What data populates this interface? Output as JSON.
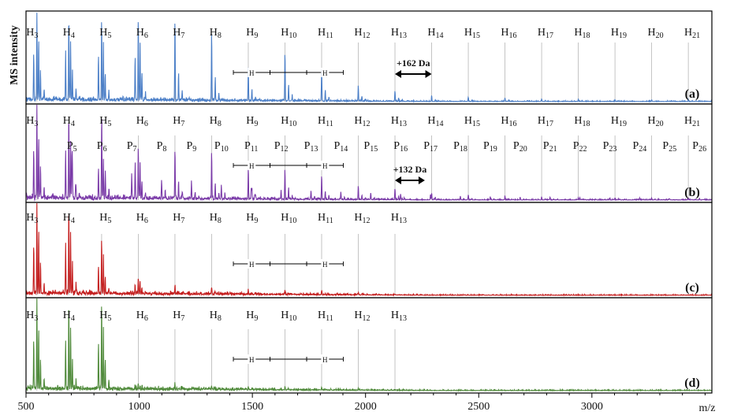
{
  "figure": {
    "y_axis_label": "MS intensity",
    "x_axis_label": "m/z",
    "xlim": [
      500,
      3530
    ],
    "x_ticks": [
      500,
      1000,
      1500,
      2000,
      2500,
      3000
    ]
  },
  "chart_data": [
    {
      "type": "line",
      "panel_label": "(a)",
      "color": "#4a7ec7",
      "series": [
        {
          "name": "H",
          "annotation_indices": [
            3,
            4,
            5,
            6,
            7,
            8,
            9,
            10,
            11,
            12,
            13,
            14,
            15,
            16,
            17,
            18,
            19,
            20,
            21
          ],
          "label_mz": [
            527,
            689,
            851,
            1013,
            1175,
            1337,
            1499,
            1661,
            1823,
            1985,
            2147,
            2309,
            2471,
            2633,
            2795,
            2957,
            3119,
            3281,
            3443
          ],
          "peak_mz": [
            548,
            689,
            834,
            996,
            1158,
            1320,
            1482,
            1644,
            1806,
            1968,
            2130,
            2292,
            2454,
            2616,
            2778,
            2940,
            3102,
            3264,
            3426
          ],
          "peak_intensity": [
            0.97,
            0.95,
            0.92,
            0.92,
            0.92,
            0.78,
            0.38,
            0.55,
            0.36,
            0.17,
            0.12,
            0.06,
            0.05,
            0.04,
            0.03,
            0.025,
            0.02,
            0.02,
            0.02
          ]
        }
      ],
      "annotation": {
        "text": "+162 Da",
        "from_mz": 2130,
        "to_mz": 2292
      }
    },
    {
      "type": "line",
      "panel_label": "(b)",
      "color": "#7a3aa8",
      "series": [
        {
          "name": "H",
          "annotation_indices": [
            3,
            4,
            5,
            6,
            7,
            8,
            9,
            10,
            11,
            12,
            13,
            14,
            15,
            16,
            17,
            18,
            19,
            20,
            21
          ],
          "label_mz": [
            527,
            689,
            851,
            1013,
            1175,
            1337,
            1499,
            1661,
            1823,
            1985,
            2147,
            2309,
            2471,
            2633,
            2795,
            2957,
            3119,
            3281,
            3443
          ],
          "peak_mz": [
            548,
            689,
            834,
            996,
            1158,
            1320,
            1482,
            1644,
            1806,
            1968,
            2130,
            2292,
            2454,
            2616,
            2778,
            2940,
            3102,
            3264,
            3426
          ],
          "peak_intensity": [
            0.97,
            0.9,
            0.6,
            0.55,
            0.52,
            0.5,
            0.34,
            0.3,
            0.25,
            0.15,
            0.12,
            0.07,
            0.05,
            0.04,
            0.03,
            0.025,
            0.02,
            0.02,
            0.02
          ]
        },
        {
          "name": "P",
          "annotation_indices": [
            5,
            6,
            7,
            8,
            9,
            10,
            11,
            12,
            13,
            14,
            15,
            16,
            17,
            18,
            19,
            20,
            21,
            22,
            23,
            24,
            25,
            26
          ],
          "label_mz": [
            703,
            835,
            967,
            1099,
            1231,
            1363,
            1495,
            1627,
            1759,
            1891,
            2023,
            2155,
            2287,
            2419,
            2551,
            2683,
            2815,
            2947,
            3079,
            3211,
            3343,
            3475
          ],
          "peak_mz": [
            703,
            835,
            967,
            1099,
            1231,
            1363,
            1495,
            1627,
            1759,
            1891,
            2023,
            2155,
            2287,
            2419,
            2551,
            2683,
            2815,
            2947,
            3079,
            3211,
            3343,
            3475
          ],
          "peak_intensity": [
            0.4,
            0.35,
            0.25,
            0.2,
            0.17,
            0.14,
            0.12,
            0.1,
            0.09,
            0.08,
            0.07,
            0.06,
            0.05,
            0.04,
            0.035,
            0.03,
            0.03,
            0.025,
            0.02,
            0.02,
            0.015,
            0.015
          ]
        }
      ],
      "annotation": {
        "text": "+132 Da",
        "from_mz": 2130,
        "to_mz": 2262
      }
    },
    {
      "type": "line",
      "panel_label": "(c)",
      "color": "#c41e1e",
      "series": [
        {
          "name": "H",
          "annotation_indices": [
            3,
            4,
            5,
            6,
            7,
            8,
            9,
            10,
            11,
            12,
            13
          ],
          "label_mz": [
            527,
            689,
            851,
            1013,
            1175,
            1337,
            1499,
            1661,
            1823,
            1985,
            2147
          ],
          "peak_mz": [
            548,
            689,
            834,
            996,
            1158,
            1320,
            1482,
            1644,
            1806,
            1968,
            2130
          ],
          "peak_intensity": [
            0.98,
            0.97,
            0.6,
            0.18,
            0.09,
            0.08,
            0.05,
            0.05,
            0.04,
            0.02,
            0.01
          ]
        }
      ]
    },
    {
      "type": "line",
      "panel_label": "(d)",
      "color": "#4f8a3a",
      "series": [
        {
          "name": "H",
          "annotation_indices": [
            3,
            4,
            5,
            6,
            7,
            8,
            9,
            10,
            11,
            12,
            13
          ],
          "label_mz": [
            527,
            689,
            851,
            1013,
            1175,
            1337,
            1499,
            1661,
            1823,
            1985,
            2147
          ],
          "peak_mz": [
            548,
            689,
            834,
            996,
            1158,
            1320,
            1482,
            1644,
            1806,
            1968,
            2130
          ],
          "peak_intensity": [
            0.98,
            0.97,
            0.95,
            0.06,
            0.05,
            0.04,
            0.04,
            0.04,
            0.03,
            0.02,
            0.01
          ]
        }
      ]
    }
  ]
}
